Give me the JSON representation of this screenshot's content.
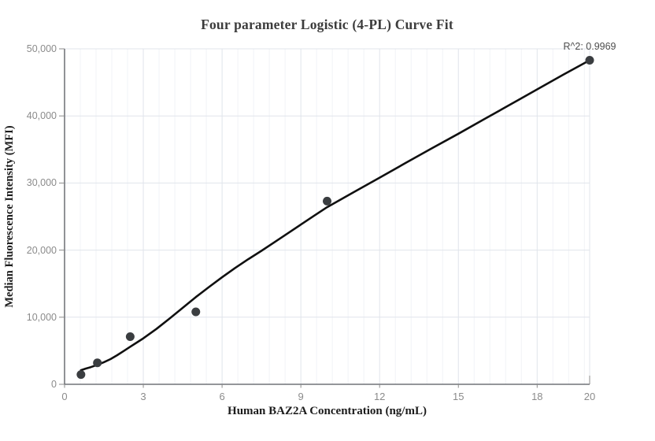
{
  "chart_data": {
    "type": "scatter",
    "title": "Four parameter Logistic (4-PL) Curve Fit",
    "xlabel": "Human BAZ2A Concentration (ng/mL)",
    "ylabel": "Median Fluorescence Intensity (MFI)",
    "annotation": "R^2: 0.9969",
    "r_squared": 0.9969,
    "xlim": [
      0,
      20
    ],
    "ylim": [
      0,
      50000
    ],
    "grid": "major x+y, minor x only",
    "legend": "none",
    "x_ticks": [
      {
        "value": 0,
        "label": "0"
      },
      {
        "value": 3,
        "label": "3"
      },
      {
        "value": 6,
        "label": "6"
      },
      {
        "value": 9,
        "label": "9"
      },
      {
        "value": 12,
        "label": "12"
      },
      {
        "value": 15,
        "label": "15"
      },
      {
        "value": 18,
        "label": "18"
      },
      {
        "value": 20,
        "label": "20"
      }
    ],
    "y_ticks": [
      {
        "value": 0,
        "label": "0"
      },
      {
        "value": 10000,
        "label": "10,000"
      },
      {
        "value": 20000,
        "label": "20,000"
      },
      {
        "value": 30000,
        "label": "30,000"
      },
      {
        "value": 40000,
        "label": "40,000"
      },
      {
        "value": 50000,
        "label": "50,000"
      }
    ],
    "x_major_gridlines": [
      3,
      6,
      9,
      12,
      15,
      18,
      20
    ],
    "x_minor_step": 0.6,
    "points": [
      {
        "x": 0.625,
        "y": 1450
      },
      {
        "x": 1.25,
        "y": 3200
      },
      {
        "x": 2.5,
        "y": 7100
      },
      {
        "x": 5,
        "y": 10800
      },
      {
        "x": 10,
        "y": 27300
      },
      {
        "x": 20,
        "y": 48300
      }
    ],
    "fit_curve": [
      [
        0.625,
        2100
      ],
      [
        0.8,
        2330
      ],
      [
        1.0,
        2560
      ],
      [
        1.25,
        2900
      ],
      [
        1.5,
        3300
      ],
      [
        1.75,
        3760
      ],
      [
        2.0,
        4330
      ],
      [
        2.25,
        4950
      ],
      [
        2.5,
        5600
      ],
      [
        2.75,
        6220
      ],
      [
        3.0,
        6850
      ],
      [
        3.5,
        8250
      ],
      [
        4.0,
        9800
      ],
      [
        4.5,
        11400
      ],
      [
        5.0,
        13000
      ],
      [
        5.5,
        14500
      ],
      [
        6.0,
        15950
      ],
      [
        6.5,
        17350
      ],
      [
        7.0,
        18650
      ],
      [
        7.5,
        19900
      ],
      [
        8.0,
        21200
      ],
      [
        8.5,
        22500
      ],
      [
        9.0,
        23800
      ],
      [
        9.5,
        25100
      ],
      [
        10,
        26400
      ],
      [
        11,
        28600
      ],
      [
        12,
        30800
      ],
      [
        13,
        33000
      ],
      [
        14,
        35200
      ],
      [
        15,
        37350
      ],
      [
        16,
        39550
      ],
      [
        17,
        41750
      ],
      [
        18,
        43950
      ],
      [
        19,
        46150
      ],
      [
        20,
        48300
      ]
    ],
    "colors": {
      "curve": "#101010",
      "point": "#3a3d40",
      "grid_major": "#e0e4eb",
      "grid_minor": "#f1f3f7",
      "axis_line": "#55585e",
      "tick_mark": "#8b8b8b",
      "tick_text": "#8b8b8b",
      "title_text": "#3c3c3c",
      "axis_label_text": "#1c1c1c",
      "annotation_text": "#4c4c4c"
    }
  }
}
